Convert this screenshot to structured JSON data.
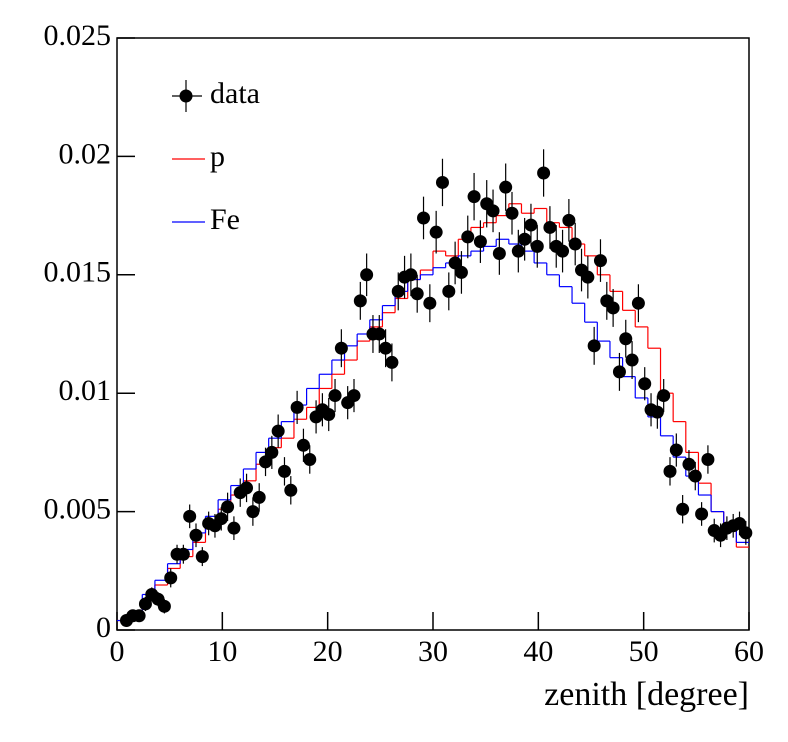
{
  "chart_data": {
    "type": "histogram",
    "xlabel": "zenith [degree]",
    "xlim": [
      0,
      60
    ],
    "ylim": [
      0,
      0.025
    ],
    "xticks": [
      0,
      10,
      20,
      30,
      40,
      50,
      60
    ],
    "yticks": [
      0,
      0.005,
      0.01,
      0.015,
      0.02,
      0.025
    ],
    "legend": "top-left",
    "series": [
      {
        "name": "data",
        "type": "scatter",
        "color": "#000000",
        "x": [
          0.9,
          1.5,
          2.1,
          2.7,
          3.3,
          3.9,
          4.5,
          5.1,
          5.7,
          6.3,
          6.9,
          7.5,
          8.1,
          8.7,
          9.3,
          9.9,
          10.5,
          11.1,
          11.7,
          12.3,
          12.9,
          13.5,
          14.1,
          14.7,
          15.3,
          15.9,
          16.5,
          17.1,
          17.7,
          18.3,
          18.9,
          19.5,
          20.1,
          20.7,
          21.3,
          21.9,
          22.5,
          23.1,
          23.7,
          24.3,
          24.9,
          25.5,
          26.1,
          26.7,
          27.3,
          27.9,
          28.5,
          29.1,
          29.7,
          30.3,
          30.9,
          31.5,
          32.1,
          32.7,
          33.3,
          33.9,
          34.5,
          35.1,
          35.7,
          36.3,
          36.9,
          37.5,
          38.1,
          38.7,
          39.3,
          39.9,
          40.5,
          41.1,
          41.7,
          42.3,
          42.9,
          43.5,
          44.1,
          44.7,
          45.3,
          45.9,
          46.5,
          47.1,
          47.7,
          48.3,
          48.9,
          49.5,
          50.1,
          50.7,
          51.3,
          51.9,
          52.5,
          53.1,
          53.7,
          54.3,
          54.9,
          55.5,
          56.1,
          56.7,
          57.3,
          57.9,
          58.5,
          59.1,
          59.7
        ],
        "values": [
          0.0004,
          0.0006,
          0.0006,
          0.0011,
          0.0015,
          0.0013,
          0.001,
          0.0022,
          0.0032,
          0.0032,
          0.0048,
          0.004,
          0.0031,
          0.0045,
          0.0044,
          0.0047,
          0.0052,
          0.0043,
          0.0058,
          0.006,
          0.005,
          0.0056,
          0.0071,
          0.0075,
          0.0084,
          0.0067,
          0.0059,
          0.0094,
          0.0078,
          0.0072,
          0.009,
          0.0093,
          0.0091,
          0.0099,
          0.0119,
          0.0096,
          0.0099,
          0.0139,
          0.015,
          0.0125,
          0.0125,
          0.0119,
          0.0113,
          0.0143,
          0.0149,
          0.015,
          0.0142,
          0.0174,
          0.0138,
          0.0168,
          0.0189,
          0.0143,
          0.0155,
          0.0151,
          0.0166,
          0.0183,
          0.0164,
          0.018,
          0.0177,
          0.0159,
          0.0187,
          0.0176,
          0.016,
          0.0165,
          0.0171,
          0.0162,
          0.0193,
          0.017,
          0.0162,
          0.016,
          0.0173,
          0.0163,
          0.0152,
          0.0149,
          0.012,
          0.0156,
          0.0139,
          0.0136,
          0.0109,
          0.0123,
          0.0114,
          0.0138,
          0.0104,
          0.0093,
          0.0092,
          0.0099,
          0.0067,
          0.0076,
          0.0051,
          0.007,
          0.0065,
          0.0049,
          0.0072,
          0.0042,
          0.004,
          0.0043,
          0.0044,
          0.0045,
          0.0041
        ],
        "errors": [
          0.0002,
          0.0002,
          0.0002,
          0.0003,
          0.0003,
          0.0003,
          0.0003,
          0.0004,
          0.0004,
          0.0004,
          0.0005,
          0.0005,
          0.0004,
          0.0005,
          0.0005,
          0.0005,
          0.0006,
          0.0005,
          0.0006,
          0.0006,
          0.0006,
          0.0006,
          0.0006,
          0.0007,
          0.0007,
          0.0006,
          0.0006,
          0.0007,
          0.0007,
          0.0006,
          0.0007,
          0.0007,
          0.0007,
          0.0007,
          0.0008,
          0.0007,
          0.0007,
          0.0008,
          0.0009,
          0.0008,
          0.0008,
          0.0008,
          0.0008,
          0.0008,
          0.0009,
          0.0009,
          0.0008,
          0.0009,
          0.0008,
          0.0009,
          0.001,
          0.0008,
          0.0009,
          0.0009,
          0.0009,
          0.001,
          0.0009,
          0.001,
          0.0009,
          0.0009,
          0.001,
          0.0009,
          0.0009,
          0.0009,
          0.0009,
          0.0009,
          0.001,
          0.0009,
          0.0009,
          0.0009,
          0.0009,
          0.0009,
          0.0009,
          0.0009,
          0.0008,
          0.0009,
          0.0008,
          0.0008,
          0.0008,
          0.0008,
          0.0008,
          0.0008,
          0.0007,
          0.0007,
          0.0007,
          0.0007,
          0.0006,
          0.0007,
          0.0006,
          0.0006,
          0.0006,
          0.0005,
          0.0006,
          0.0005,
          0.0005,
          0.0005,
          0.0005,
          0.0005,
          0.0005
        ]
      },
      {
        "name": "p",
        "type": "histogram",
        "color": "#ff0000",
        "bins": [
          0,
          1.2,
          2.4,
          3.6,
          4.8,
          6,
          7.2,
          8.4,
          9.6,
          10.8,
          12,
          13.2,
          14.4,
          15.6,
          16.8,
          18,
          19.2,
          20.4,
          21.6,
          22.8,
          24,
          25.2,
          26.4,
          27.6,
          28.8,
          30,
          31.2,
          32.4,
          33.6,
          34.8,
          36,
          37.2,
          38.4,
          39.6,
          40.8,
          42,
          43.2,
          44.4,
          45.6,
          46.8,
          48,
          49.2,
          50.4,
          51.6,
          52.8,
          54,
          55.2,
          56.4,
          57.6,
          58.8,
          60
        ],
        "values": [
          0.0004,
          0.0007,
          0.0013,
          0.0019,
          0.0026,
          0.0031,
          0.0037,
          0.0044,
          0.0051,
          0.0057,
          0.0063,
          0.007,
          0.0077,
          0.0081,
          0.0089,
          0.0094,
          0.0102,
          0.0108,
          0.0114,
          0.0122,
          0.0128,
          0.0134,
          0.014,
          0.0148,
          0.0152,
          0.016,
          0.0158,
          0.0165,
          0.017,
          0.0172,
          0.0175,
          0.018,
          0.0176,
          0.0178,
          0.0172,
          0.017,
          0.0163,
          0.0158,
          0.015,
          0.0143,
          0.0135,
          0.0128,
          0.0119,
          0.01,
          0.0088,
          0.0075,
          0.0062,
          0.005,
          0.0042,
          0.0035
        ]
      },
      {
        "name": "Fe",
        "type": "histogram",
        "color": "#0000ff",
        "bins": [
          0,
          1.2,
          2.4,
          3.6,
          4.8,
          6,
          7.2,
          8.4,
          9.6,
          10.8,
          12,
          13.2,
          14.4,
          15.6,
          16.8,
          18,
          19.2,
          20.4,
          21.6,
          22.8,
          24,
          25.2,
          26.4,
          27.6,
          28.8,
          30,
          31.2,
          32.4,
          33.6,
          34.8,
          36,
          37.2,
          38.4,
          39.6,
          40.8,
          42,
          43.2,
          44.4,
          45.6,
          46.8,
          48,
          49.2,
          50.4,
          51.6,
          52.8,
          54,
          55.2,
          56.4,
          57.6,
          58.8,
          60
        ],
        "values": [
          0.0004,
          0.0008,
          0.0015,
          0.0021,
          0.0028,
          0.0034,
          0.0041,
          0.0048,
          0.0055,
          0.0061,
          0.0068,
          0.0075,
          0.0081,
          0.0088,
          0.0095,
          0.0102,
          0.0108,
          0.0114,
          0.012,
          0.0125,
          0.0131,
          0.0137,
          0.0143,
          0.0148,
          0.015,
          0.0153,
          0.0155,
          0.0158,
          0.016,
          0.0162,
          0.0165,
          0.0163,
          0.016,
          0.0155,
          0.015,
          0.0145,
          0.0138,
          0.013,
          0.0122,
          0.0115,
          0.0107,
          0.0098,
          0.009,
          0.0082,
          0.0073,
          0.0065,
          0.0057,
          0.005,
          0.0043,
          0.0037
        ]
      }
    ]
  }
}
